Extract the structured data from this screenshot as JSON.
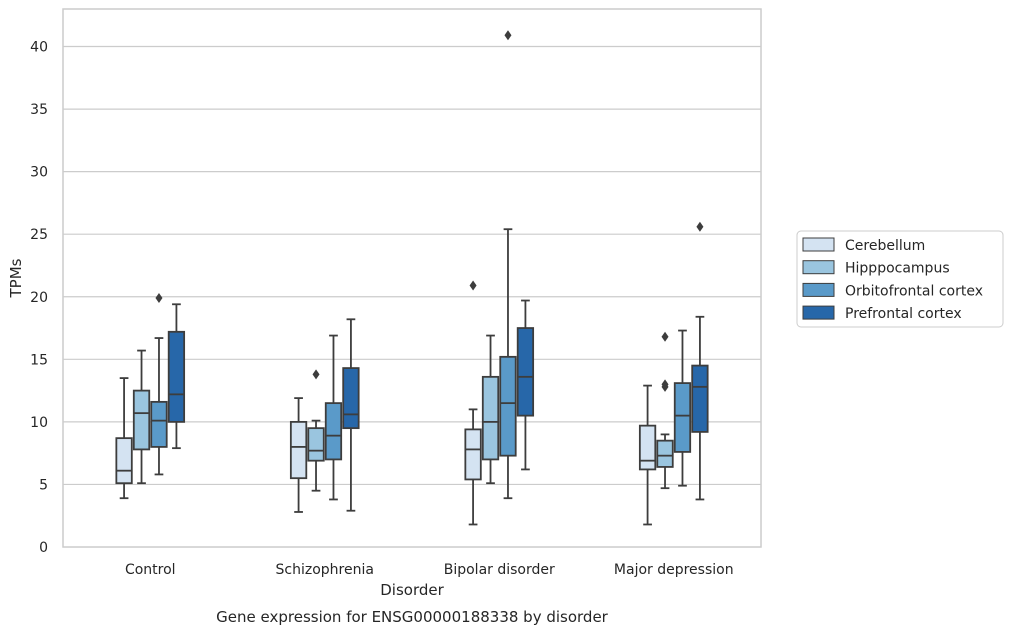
{
  "chart_data": {
    "type": "box",
    "caption": "Gene expression for ENSG00000188338 by disorder",
    "xlabel": "Disorder",
    "ylabel": "TPMs",
    "ylim": [
      0,
      43
    ],
    "yticks": [
      "0",
      "5",
      "10",
      "15",
      "20",
      "25",
      "30",
      "35",
      "40"
    ],
    "grid": true,
    "legend_position": "right",
    "categories": [
      "Control",
      "Schizophrenia",
      "Bipolar disorder",
      "Major depression"
    ],
    "series": [
      {
        "name": "Cerebellum",
        "color": "#d4e3f2",
        "boxes": [
          {
            "whislo": 3.9,
            "q1": 5.1,
            "med": 6.1,
            "q3": 8.7,
            "whishi": 13.5,
            "fliers": []
          },
          {
            "whislo": 2.8,
            "q1": 5.5,
            "med": 8.0,
            "q3": 10.0,
            "whishi": 11.9,
            "fliers": []
          },
          {
            "whislo": 1.8,
            "q1": 5.4,
            "med": 7.8,
            "q3": 9.4,
            "whishi": 11.0,
            "fliers": [
              20.9
            ]
          },
          {
            "whislo": 1.8,
            "q1": 6.2,
            "med": 6.9,
            "q3": 9.7,
            "whishi": 12.9,
            "fliers": []
          }
        ]
      },
      {
        "name": "Hipppocampus",
        "color": "#9ac5df",
        "boxes": [
          {
            "whislo": 5.1,
            "q1": 7.8,
            "med": 10.7,
            "q3": 12.5,
            "whishi": 15.7,
            "fliers": []
          },
          {
            "whislo": 4.5,
            "q1": 6.9,
            "med": 7.7,
            "q3": 9.5,
            "whishi": 10.1,
            "fliers": [
              13.8
            ]
          },
          {
            "whislo": 5.1,
            "q1": 7.0,
            "med": 10.0,
            "q3": 13.6,
            "whishi": 16.9,
            "fliers": []
          },
          {
            "whislo": 4.7,
            "q1": 6.4,
            "med": 7.3,
            "q3": 8.5,
            "whishi": 9.0,
            "fliers": [
              12.8,
              13.0,
              16.8
            ]
          }
        ]
      },
      {
        "name": "Orbitofrontal cortex",
        "color": "#5a9ac9",
        "boxes": [
          {
            "whislo": 5.8,
            "q1": 8.0,
            "med": 10.1,
            "q3": 11.6,
            "whishi": 16.7,
            "fliers": [
              19.9
            ]
          },
          {
            "whislo": 3.8,
            "q1": 7.0,
            "med": 8.9,
            "q3": 11.5,
            "whishi": 16.9,
            "fliers": []
          },
          {
            "whislo": 3.9,
            "q1": 7.3,
            "med": 11.5,
            "q3": 15.2,
            "whishi": 25.4,
            "fliers": [
              40.9
            ]
          },
          {
            "whislo": 4.9,
            "q1": 7.6,
            "med": 10.5,
            "q3": 13.1,
            "whishi": 17.3,
            "fliers": []
          }
        ]
      },
      {
        "name": "Prefrontal cortex",
        "color": "#2767a9",
        "boxes": [
          {
            "whislo": 7.9,
            "q1": 10.0,
            "med": 12.2,
            "q3": 17.2,
            "whishi": 19.4,
            "fliers": []
          },
          {
            "whislo": 2.9,
            "q1": 9.5,
            "med": 10.6,
            "q3": 14.3,
            "whishi": 18.2,
            "fliers": []
          },
          {
            "whislo": 6.2,
            "q1": 10.5,
            "med": 13.6,
            "q3": 17.5,
            "whishi": 19.7,
            "fliers": []
          },
          {
            "whislo": 3.8,
            "q1": 9.2,
            "med": 12.8,
            "q3": 14.5,
            "whishi": 18.4,
            "fliers": [
              25.6
            ]
          }
        ]
      }
    ]
  }
}
